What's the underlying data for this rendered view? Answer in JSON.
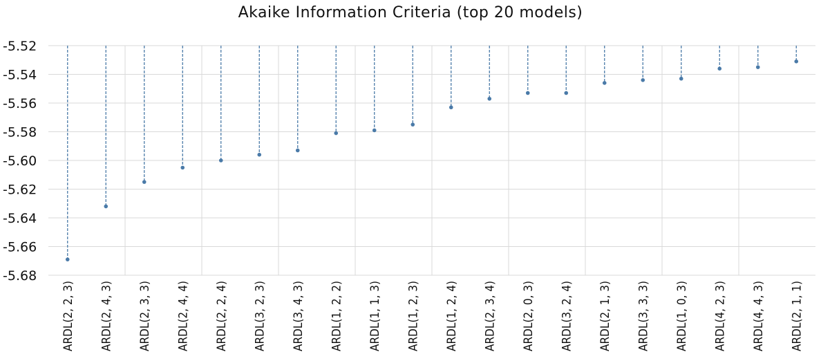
{
  "chart_data": {
    "type": "scatter",
    "title": "Akaike Information Criteria (top 20 models)",
    "xlabel": "",
    "ylabel": "",
    "ylim": [
      -5.68,
      -5.52
    ],
    "yticks": [
      "-5.52",
      "-5.54",
      "-5.56",
      "-5.58",
      "-5.60",
      "-5.62",
      "-5.64",
      "-5.66",
      "-5.68"
    ],
    "categories": [
      "ARDL(2, 2, 3)",
      "ARDL(2, 4, 3)",
      "ARDL(2, 3, 3)",
      "ARDL(2, 4, 4)",
      "ARDL(2, 2, 4)",
      "ARDL(3, 2, 3)",
      "ARDL(3, 4, 3)",
      "ARDL(1, 2, 2)",
      "ARDL(1, 1, 3)",
      "ARDL(1, 2, 3)",
      "ARDL(1, 2, 4)",
      "ARDL(2, 3, 4)",
      "ARDL(2, 0, 3)",
      "ARDL(3, 2, 4)",
      "ARDL(2, 1, 3)",
      "ARDL(3, 3, 3)",
      "ARDL(1, 0, 3)",
      "ARDL(4, 2, 3)",
      "ARDL(4, 4, 3)",
      "ARDL(2, 1, 1)"
    ],
    "values": [
      -5.669,
      -5.632,
      -5.615,
      -5.605,
      -5.6,
      -5.596,
      -5.593,
      -5.581,
      -5.579,
      -5.575,
      -5.563,
      -5.557,
      -5.553,
      -5.553,
      -5.546,
      -5.544,
      -5.543,
      -5.536,
      -5.535,
      -5.531
    ],
    "grid": true,
    "style": "dropline",
    "colors": {
      "marker": "#4a7aa8",
      "grid": "#d9d9d9",
      "text": "#111111"
    }
  }
}
